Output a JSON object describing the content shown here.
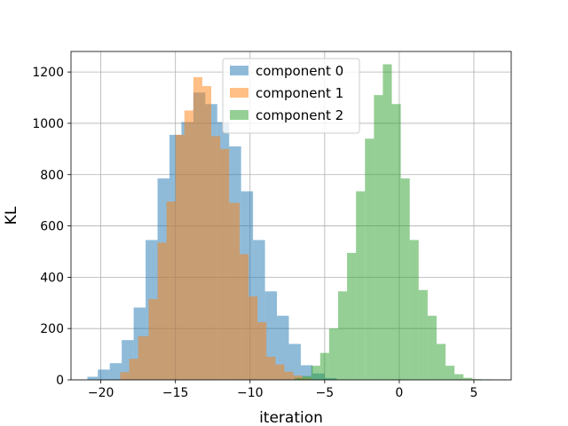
{
  "chart_data": {
    "type": "histogram",
    "xlabel": "iteration",
    "ylabel": "KL",
    "xlim": [
      -22,
      7.5
    ],
    "ylim": [
      0,
      1280
    ],
    "x_ticks": [
      -20,
      -15,
      -10,
      -5,
      0,
      5
    ],
    "x_tick_labels": [
      "−20",
      "−15",
      "−10",
      "−5",
      "0",
      "5"
    ],
    "y_ticks": [
      0,
      200,
      400,
      600,
      800,
      1000,
      1200
    ],
    "y_tick_labels": [
      "0",
      "200",
      "400",
      "600",
      "800",
      "1000",
      "1200"
    ],
    "grid": true,
    "legend_position": "upper-center",
    "alpha": 0.5,
    "series": [
      {
        "name": "component 0",
        "color": "#1f77b4",
        "bins": [
          {
            "x0": -20.9,
            "x1": -20.2,
            "v": 12
          },
          {
            "x0": -20.2,
            "x1": -19.4,
            "v": 40
          },
          {
            "x0": -19.4,
            "x1": -18.6,
            "v": 65
          },
          {
            "x0": -18.6,
            "x1": -17.8,
            "v": 155
          },
          {
            "x0": -17.8,
            "x1": -17.0,
            "v": 282
          },
          {
            "x0": -17.0,
            "x1": -16.2,
            "v": 545
          },
          {
            "x0": -16.2,
            "x1": -15.4,
            "v": 785
          },
          {
            "x0": -15.4,
            "x1": -14.6,
            "v": 955
          },
          {
            "x0": -14.6,
            "x1": -13.8,
            "v": 1005
          },
          {
            "x0": -13.8,
            "x1": -13.0,
            "v": 1120
          },
          {
            "x0": -13.0,
            "x1": -12.2,
            "v": 1075
          },
          {
            "x0": -12.2,
            "x1": -11.4,
            "v": 1005
          },
          {
            "x0": -11.4,
            "x1": -10.6,
            "v": 910
          },
          {
            "x0": -10.6,
            "x1": -9.8,
            "v": 735
          },
          {
            "x0": -9.8,
            "x1": -9.0,
            "v": 545
          },
          {
            "x0": -9.0,
            "x1": -8.2,
            "v": 345
          },
          {
            "x0": -8.2,
            "x1": -7.4,
            "v": 250
          },
          {
            "x0": -7.4,
            "x1": -6.6,
            "v": 140
          },
          {
            "x0": -6.6,
            "x1": -5.8,
            "v": 57
          },
          {
            "x0": -5.8,
            "x1": -5.0,
            "v": 25
          },
          {
            "x0": -5.0,
            "x1": -4.2,
            "v": 7
          }
        ]
      },
      {
        "name": "component 1",
        "color": "#ff7f0e",
        "bins": [
          {
            "x0": -18.7,
            "x1": -18.1,
            "v": 30
          },
          {
            "x0": -18.1,
            "x1": -17.5,
            "v": 82
          },
          {
            "x0": -17.5,
            "x1": -16.8,
            "v": 170
          },
          {
            "x0": -16.8,
            "x1": -16.2,
            "v": 315
          },
          {
            "x0": -16.2,
            "x1": -15.6,
            "v": 535
          },
          {
            "x0": -15.6,
            "x1": -15.0,
            "v": 695
          },
          {
            "x0": -15.0,
            "x1": -14.4,
            "v": 955
          },
          {
            "x0": -14.4,
            "x1": -13.8,
            "v": 1050
          },
          {
            "x0": -13.8,
            "x1": -13.2,
            "v": 1180
          },
          {
            "x0": -13.2,
            "x1": -12.6,
            "v": 1145
          },
          {
            "x0": -12.6,
            "x1": -12.0,
            "v": 950
          },
          {
            "x0": -12.0,
            "x1": -11.4,
            "v": 900
          },
          {
            "x0": -11.4,
            "x1": -10.7,
            "v": 690
          },
          {
            "x0": -10.7,
            "x1": -10.1,
            "v": 490
          },
          {
            "x0": -10.1,
            "x1": -9.5,
            "v": 325
          },
          {
            "x0": -9.5,
            "x1": -8.9,
            "v": 225
          },
          {
            "x0": -8.9,
            "x1": -8.3,
            "v": 90
          },
          {
            "x0": -8.3,
            "x1": -7.7,
            "v": 60
          },
          {
            "x0": -7.7,
            "x1": -7.1,
            "v": 32
          },
          {
            "x0": -7.1,
            "x1": -6.5,
            "v": 17
          },
          {
            "x0": -6.5,
            "x1": -5.9,
            "v": 8
          }
        ]
      },
      {
        "name": "component 2",
        "color": "#2ca02c",
        "bins": [
          {
            "x0": -7.0,
            "x1": -6.5,
            "v": 8
          },
          {
            "x0": -6.5,
            "x1": -5.9,
            "v": 15
          },
          {
            "x0": -5.9,
            "x1": -5.3,
            "v": 55
          },
          {
            "x0": -5.3,
            "x1": -4.7,
            "v": 105
          },
          {
            "x0": -4.7,
            "x1": -4.1,
            "v": 200
          },
          {
            "x0": -4.1,
            "x1": -3.5,
            "v": 345
          },
          {
            "x0": -3.5,
            "x1": -2.9,
            "v": 495
          },
          {
            "x0": -2.9,
            "x1": -2.3,
            "v": 735
          },
          {
            "x0": -2.3,
            "x1": -1.7,
            "v": 940
          },
          {
            "x0": -1.7,
            "x1": -1.1,
            "v": 1110
          },
          {
            "x0": -1.1,
            "x1": -0.5,
            "v": 1230
          },
          {
            "x0": -0.5,
            "x1": 0.1,
            "v": 1075
          },
          {
            "x0": 0.1,
            "x1": 0.7,
            "v": 785
          },
          {
            "x0": 0.7,
            "x1": 1.3,
            "v": 545
          },
          {
            "x0": 1.3,
            "x1": 1.9,
            "v": 350
          },
          {
            "x0": 1.9,
            "x1": 2.5,
            "v": 250
          },
          {
            "x0": 2.5,
            "x1": 3.1,
            "v": 140
          },
          {
            "x0": 3.1,
            "x1": 3.7,
            "v": 55
          },
          {
            "x0": 3.7,
            "x1": 4.3,
            "v": 22
          },
          {
            "x0": 4.3,
            "x1": 4.9,
            "v": 8
          },
          {
            "x0": 4.9,
            "x1": 5.5,
            "v": 3
          },
          {
            "x0": 5.5,
            "x1": 6.3,
            "v": 2
          }
        ]
      }
    ]
  }
}
